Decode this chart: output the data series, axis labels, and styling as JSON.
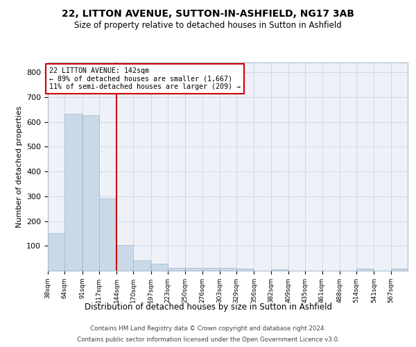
{
  "title_line1": "22, LITTON AVENUE, SUTTON-IN-ASHFIELD, NG17 3AB",
  "title_line2": "Size of property relative to detached houses in Sutton in Ashfield",
  "xlabel": "Distribution of detached houses by size in Sutton in Ashfield",
  "ylabel": "Number of detached properties",
  "footer_line1": "Contains HM Land Registry data © Crown copyright and database right 2024.",
  "footer_line2": "Contains public sector information licensed under the Open Government Licence v3.0.",
  "annotation_line1": "22 LITTON AVENUE: 142sqm",
  "annotation_line2": "← 89% of detached houses are smaller (1,667)",
  "annotation_line3": "11% of semi-detached houses are larger (209) →",
  "bar_edges": [
    38,
    64,
    91,
    117,
    144,
    170,
    197,
    223,
    250,
    276,
    303,
    329,
    356,
    382,
    409,
    435,
    461,
    488,
    514,
    541,
    567
  ],
  "bar_heights": [
    150,
    634,
    626,
    290,
    103,
    42,
    28,
    11,
    12,
    11,
    11,
    9,
    0,
    5,
    0,
    0,
    0,
    0,
    8,
    0,
    8
  ],
  "bar_color": "#c9d9e8",
  "bar_edge_color": "#a0b8cc",
  "vline_color": "#cc0000",
  "vline_x": 144,
  "annotation_box_edge_color": "#cc0000",
  "grid_color": "#d0d8e8",
  "background_color": "#eef2f8",
  "ylim": [
    0,
    840
  ],
  "yticks": [
    100,
    200,
    300,
    400,
    500,
    600,
    700,
    800
  ],
  "tick_labels": [
    "38sqm",
    "64sqm",
    "91sqm",
    "117sqm",
    "144sqm",
    "170sqm",
    "197sqm",
    "223sqm",
    "250sqm",
    "276sqm",
    "303sqm",
    "329sqm",
    "356sqm",
    "382sqm",
    "409sqm",
    "435sqm",
    "461sqm",
    "488sqm",
    "514sqm",
    "541sqm",
    "567sqm"
  ]
}
